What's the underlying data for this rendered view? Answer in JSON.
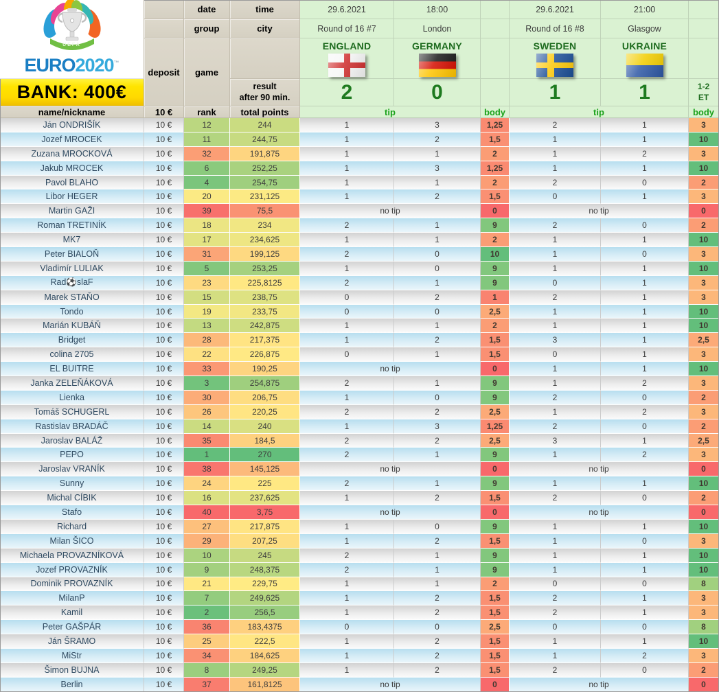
{
  "logo": {
    "uefa": "UEFA",
    "euro": "EURO",
    "year": "2020",
    "tm": "™"
  },
  "bank_label": "BANK: 400€",
  "corner": {
    "deposit": "deposit",
    "game": "game",
    "date": "date",
    "time": "time",
    "group": "group",
    "city": "city",
    "result_line1": "result",
    "result_line2": "after 90 min."
  },
  "columns_header": {
    "name": "name/nickname",
    "fee": "10 €",
    "rank": "rank",
    "points": "total points",
    "tip": "tip",
    "body": "body"
  },
  "no_tip_label": "no tip",
  "matches": [
    {
      "date": "29.6.2021",
      "time": "18:00",
      "round": "Round of 16 #7",
      "city": "London",
      "home": {
        "name": "ENGLAND",
        "flag": "england"
      },
      "away": {
        "name": "GERMANY",
        "flag": "germany"
      },
      "score_home": "2",
      "score_away": "0",
      "extra_line1": "",
      "extra_line2": ""
    },
    {
      "date": "29.6.2021",
      "time": "21:00",
      "round": "Round of 16 #8",
      "city": "Glasgow",
      "home": {
        "name": "SWEDEN",
        "flag": "sweden"
      },
      "away": {
        "name": "UKRAINE",
        "flag": "ukraine"
      },
      "score_home": "1",
      "score_away": "1",
      "extra_line1": "1-2",
      "extra_line2": "ET"
    }
  ],
  "colors": {
    "scale_low": "#F8696B",
    "scale_mid": "#FFEB84",
    "scale_high": "#63BE7B",
    "bank_yellow": "#FFE400",
    "header_tan": "#D8D3C6",
    "header_green": "#DAF2D2",
    "accent_green_text": "#1E7A1F",
    "tip_label_green": "#1BA21B"
  },
  "players": [
    {
      "name": "Ján ONDRIŠÍK",
      "fee": "10 €",
      "rank": 12,
      "points": "244",
      "tips": [
        {
          "h": "1",
          "a": "3",
          "b": "1,25"
        },
        {
          "h": "2",
          "a": "1",
          "b": "3"
        }
      ]
    },
    {
      "name": "Jozef MROCEK",
      "fee": "10 €",
      "rank": 11,
      "points": "244,75",
      "tips": [
        {
          "h": "1",
          "a": "2",
          "b": "1,5"
        },
        {
          "h": "1",
          "a": "1",
          "b": "10"
        }
      ]
    },
    {
      "name": "Zuzana MROCKOVÁ",
      "fee": "10 €",
      "rank": 32,
      "points": "191,875",
      "tips": [
        {
          "h": "1",
          "a": "1",
          "b": "2"
        },
        {
          "h": "1",
          "a": "2",
          "b": "3"
        }
      ]
    },
    {
      "name": "Jakub MROCEK",
      "fee": "10 €",
      "rank": 6,
      "points": "252,25",
      "tips": [
        {
          "h": "1",
          "a": "3",
          "b": "1,25"
        },
        {
          "h": "1",
          "a": "1",
          "b": "10"
        }
      ]
    },
    {
      "name": "Pavol BLAHO",
      "fee": "10 €",
      "rank": 4,
      "points": "254,75",
      "tips": [
        {
          "h": "1",
          "a": "1",
          "b": "2"
        },
        {
          "h": "2",
          "a": "0",
          "b": "2"
        }
      ]
    },
    {
      "name": "Libor HEGER",
      "fee": "10 €",
      "rank": 20,
      "points": "231,125",
      "tips": [
        {
          "h": "1",
          "a": "2",
          "b": "1,5"
        },
        {
          "h": "0",
          "a": "1",
          "b": "3"
        }
      ]
    },
    {
      "name": "Martin GAŽI",
      "fee": "10 €",
      "rank": 39,
      "points": "75,5",
      "tips": [
        {
          "nt": true,
          "b": "0"
        },
        {
          "nt": true,
          "b": "0"
        }
      ]
    },
    {
      "name": "Roman TRETINÍK",
      "fee": "10 €",
      "rank": 18,
      "points": "234",
      "tips": [
        {
          "h": "2",
          "a": "1",
          "b": "9"
        },
        {
          "h": "2",
          "a": "0",
          "b": "2"
        }
      ]
    },
    {
      "name": "MK7",
      "fee": "10 €",
      "rank": 17,
      "points": "234,625",
      "tips": [
        {
          "h": "1",
          "a": "1",
          "b": "2"
        },
        {
          "h": "1",
          "a": "1",
          "b": "10"
        }
      ]
    },
    {
      "name": "Peter BIALOŇ",
      "fee": "10 €",
      "rank": 31,
      "points": "199,125",
      "tips": [
        {
          "h": "2",
          "a": "0",
          "b": "10"
        },
        {
          "h": "1",
          "a": "0",
          "b": "3"
        }
      ]
    },
    {
      "name": "Vladimír LULIAK",
      "fee": "10 €",
      "rank": 5,
      "points": "253,25",
      "tips": [
        {
          "h": "1",
          "a": "0",
          "b": "9"
        },
        {
          "h": "1",
          "a": "1",
          "b": "10"
        }
      ]
    },
    {
      "name": "Rad⚽slaF",
      "fee": "10 €",
      "rank": 23,
      "points": "225,8125",
      "tips": [
        {
          "h": "2",
          "a": "1",
          "b": "9"
        },
        {
          "h": "0",
          "a": "1",
          "b": "3"
        }
      ]
    },
    {
      "name": "Marek STAŇO",
      "fee": "10 €",
      "rank": 15,
      "points": "238,75",
      "tips": [
        {
          "h": "0",
          "a": "2",
          "b": "1"
        },
        {
          "h": "2",
          "a": "1",
          "b": "3"
        }
      ]
    },
    {
      "name": "Tondo",
      "fee": "10 €",
      "rank": 19,
      "points": "233,75",
      "tips": [
        {
          "h": "0",
          "a": "0",
          "b": "2,5"
        },
        {
          "h": "1",
          "a": "1",
          "b": "10"
        }
      ]
    },
    {
      "name": "Marián KUBÁŇ",
      "fee": "10 €",
      "rank": 13,
      "points": "242,875",
      "tips": [
        {
          "h": "1",
          "a": "1",
          "b": "2"
        },
        {
          "h": "1",
          "a": "1",
          "b": "10"
        }
      ]
    },
    {
      "name": "Bridget",
      "fee": "10 €",
      "rank": 28,
      "points": "217,375",
      "tips": [
        {
          "h": "1",
          "a": "2",
          "b": "1,5"
        },
        {
          "h": "3",
          "a": "1",
          "b": "2,5"
        }
      ]
    },
    {
      "name": "colina 2705",
      "fee": "10 €",
      "rank": 22,
      "points": "226,875",
      "tips": [
        {
          "h": "0",
          "a": "1",
          "b": "1,5"
        },
        {
          "h": "0",
          "a": "1",
          "b": "3"
        }
      ]
    },
    {
      "name": "EL BUITRE",
      "fee": "10 €",
      "rank": 33,
      "points": "190,25",
      "tips": [
        {
          "nt": true,
          "b": "0"
        },
        {
          "h": "1",
          "a": "1",
          "b": "10"
        }
      ]
    },
    {
      "name": "Janka ZELEŇÁKOVÁ",
      "fee": "10 €",
      "rank": 3,
      "points": "254,875",
      "tips": [
        {
          "h": "2",
          "a": "1",
          "b": "9"
        },
        {
          "h": "1",
          "a": "2",
          "b": "3"
        }
      ]
    },
    {
      "name": "Lienka",
      "fee": "10 €",
      "rank": 30,
      "points": "206,75",
      "tips": [
        {
          "h": "1",
          "a": "0",
          "b": "9"
        },
        {
          "h": "2",
          "a": "0",
          "b": "2"
        }
      ]
    },
    {
      "name": "Tomáš SCHUGERL",
      "fee": "10 €",
      "rank": 26,
      "points": "220,25",
      "tips": [
        {
          "h": "2",
          "a": "2",
          "b": "2,5"
        },
        {
          "h": "1",
          "a": "2",
          "b": "3"
        }
      ]
    },
    {
      "name": "Rastislav BRADÁČ",
      "fee": "10 €",
      "rank": 14,
      "points": "240",
      "tips": [
        {
          "h": "1",
          "a": "3",
          "b": "1,25"
        },
        {
          "h": "2",
          "a": "0",
          "b": "2"
        }
      ]
    },
    {
      "name": "Jaroslav BALÁŽ",
      "fee": "10 €",
      "rank": 35,
      "points": "184,5",
      "tips": [
        {
          "h": "2",
          "a": "2",
          "b": "2,5"
        },
        {
          "h": "3",
          "a": "1",
          "b": "2,5"
        }
      ]
    },
    {
      "name": "PEPO",
      "fee": "10 €",
      "rank": 1,
      "points": "270",
      "tips": [
        {
          "h": "2",
          "a": "1",
          "b": "9"
        },
        {
          "h": "1",
          "a": "2",
          "b": "3"
        }
      ]
    },
    {
      "name": "Jaroslav VRANÍK",
      "fee": "10 €",
      "rank": 38,
      "points": "145,125",
      "tips": [
        {
          "nt": true,
          "b": "0"
        },
        {
          "nt": true,
          "b": "0"
        }
      ]
    },
    {
      "name": "Sunny",
      "fee": "10 €",
      "rank": 24,
      "points": "225",
      "tips": [
        {
          "h": "2",
          "a": "1",
          "b": "9"
        },
        {
          "h": "1",
          "a": "1",
          "b": "10"
        }
      ]
    },
    {
      "name": "Michal CÍBIK",
      "fee": "10 €",
      "rank": 16,
      "points": "237,625",
      "tips": [
        {
          "h": "1",
          "a": "2",
          "b": "1,5"
        },
        {
          "h": "2",
          "a": "0",
          "b": "2"
        }
      ]
    },
    {
      "name": "Stafo",
      "fee": "10 €",
      "rank": 40,
      "points": "3,75",
      "tips": [
        {
          "nt": true,
          "b": "0"
        },
        {
          "nt": true,
          "b": "0"
        }
      ]
    },
    {
      "name": "Richard",
      "fee": "10 €",
      "rank": 27,
      "points": "217,875",
      "tips": [
        {
          "h": "1",
          "a": "0",
          "b": "9"
        },
        {
          "h": "1",
          "a": "1",
          "b": "10"
        }
      ]
    },
    {
      "name": "Milan ŠICO",
      "fee": "10 €",
      "rank": 29,
      "points": "207,25",
      "tips": [
        {
          "h": "1",
          "a": "2",
          "b": "1,5"
        },
        {
          "h": "1",
          "a": "0",
          "b": "3"
        }
      ]
    },
    {
      "name": "Michaela PROVAZNÍKOVÁ",
      "fee": "10 €",
      "rank": 10,
      "points": "245",
      "tips": [
        {
          "h": "2",
          "a": "1",
          "b": "9"
        },
        {
          "h": "1",
          "a": "1",
          "b": "10"
        }
      ]
    },
    {
      "name": "Jozef PROVAZNÍK",
      "fee": "10 €",
      "rank": 9,
      "points": "248,375",
      "tips": [
        {
          "h": "2",
          "a": "1",
          "b": "9"
        },
        {
          "h": "1",
          "a": "1",
          "b": "10"
        }
      ]
    },
    {
      "name": "Dominik PROVAZNÍK",
      "fee": "10 €",
      "rank": 21,
      "points": "229,75",
      "tips": [
        {
          "h": "1",
          "a": "1",
          "b": "2"
        },
        {
          "h": "0",
          "a": "0",
          "b": "8"
        }
      ]
    },
    {
      "name": "MilanP",
      "fee": "10 €",
      "rank": 7,
      "points": "249,625",
      "tips": [
        {
          "h": "1",
          "a": "2",
          "b": "1,5"
        },
        {
          "h": "2",
          "a": "1",
          "b": "3"
        }
      ]
    },
    {
      "name": "Kamil",
      "fee": "10 €",
      "rank": 2,
      "points": "256,5",
      "tips": [
        {
          "h": "1",
          "a": "2",
          "b": "1,5"
        },
        {
          "h": "2",
          "a": "1",
          "b": "3"
        }
      ]
    },
    {
      "name": "Peter GAŠPÁR",
      "fee": "10 €",
      "rank": 36,
      "points": "183,4375",
      "tips": [
        {
          "h": "0",
          "a": "0",
          "b": "2,5"
        },
        {
          "h": "0",
          "a": "0",
          "b": "8"
        }
      ]
    },
    {
      "name": "Ján ŠRAMO",
      "fee": "10 €",
      "rank": 25,
      "points": "222,5",
      "tips": [
        {
          "h": "1",
          "a": "2",
          "b": "1,5"
        },
        {
          "h": "1",
          "a": "1",
          "b": "10"
        }
      ]
    },
    {
      "name": "MiStr",
      "fee": "10 €",
      "rank": 34,
      "points": "184,625",
      "tips": [
        {
          "h": "1",
          "a": "2",
          "b": "1,5"
        },
        {
          "h": "1",
          "a": "2",
          "b": "3"
        }
      ]
    },
    {
      "name": "Šimon BUJNA",
      "fee": "10 €",
      "rank": 8,
      "points": "249,25",
      "tips": [
        {
          "h": "1",
          "a": "2",
          "b": "1,5"
        },
        {
          "h": "2",
          "a": "0",
          "b": "2"
        }
      ]
    },
    {
      "name": "Berlin",
      "fee": "10 €",
      "rank": 37,
      "points": "161,8125",
      "tips": [
        {
          "nt": true,
          "b": "0"
        },
        {
          "nt": true,
          "b": "0"
        }
      ]
    }
  ]
}
